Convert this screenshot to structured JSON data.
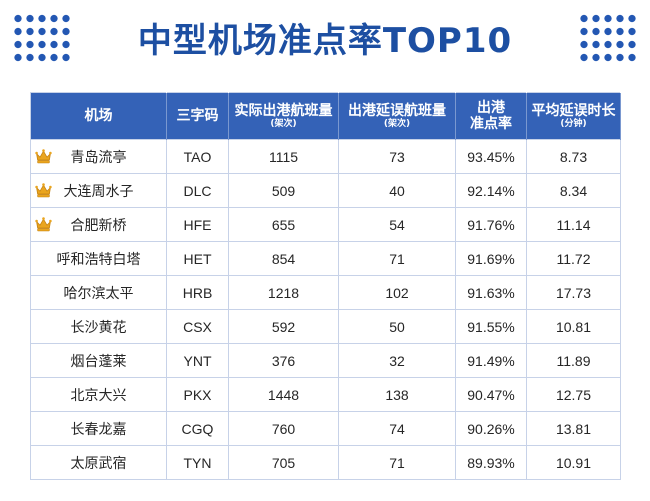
{
  "colors": {
    "title": "#1d4fa2",
    "header_bg": "#3462b7",
    "header_text": "#ffffff",
    "border": "#c7d2e8",
    "cell_text": "#262626",
    "dots": "#2357b3",
    "crown": "#eaa51e"
  },
  "icons": {
    "decoration": "dot-grid-icon",
    "top_rank": "crown-icon"
  },
  "chart_data": {
    "type": "table",
    "title": "中型机场准点率TOP10",
    "columns": [
      {
        "lines": [
          "机场"
        ]
      },
      {
        "lines": [
          "三字码"
        ]
      },
      {
        "lines": [
          "实际出港航班量"
        ],
        "unit": "(架次)"
      },
      {
        "lines": [
          "出港延误航班量"
        ],
        "unit": "(架次)"
      },
      {
        "lines": [
          "出港",
          "准点率"
        ]
      },
      {
        "lines": [
          "平均延误时长"
        ],
        "unit": "(分钟)"
      }
    ],
    "rows": [
      {
        "airport": "青岛流亭",
        "code": "TAO",
        "departures": 1115,
        "delayed": 73,
        "on_time_rate": "93.45%",
        "avg_delay_min": 8.73,
        "icon": "crown-icon"
      },
      {
        "airport": "大连周水子",
        "code": "DLC",
        "departures": 509,
        "delayed": 40,
        "on_time_rate": "92.14%",
        "avg_delay_min": 8.34,
        "icon": "crown-icon"
      },
      {
        "airport": "合肥新桥",
        "code": "HFE",
        "departures": 655,
        "delayed": 54,
        "on_time_rate": "91.76%",
        "avg_delay_min": 11.14,
        "icon": "crown-icon"
      },
      {
        "airport": "呼和浩特白塔",
        "code": "HET",
        "departures": 854,
        "delayed": 71,
        "on_time_rate": "91.69%",
        "avg_delay_min": 11.72
      },
      {
        "airport": "哈尔滨太平",
        "code": "HRB",
        "departures": 1218,
        "delayed": 102,
        "on_time_rate": "91.63%",
        "avg_delay_min": 17.73
      },
      {
        "airport": "长沙黄花",
        "code": "CSX",
        "departures": 592,
        "delayed": 50,
        "on_time_rate": "91.55%",
        "avg_delay_min": 10.81
      },
      {
        "airport": "烟台蓬莱",
        "code": "YNT",
        "departures": 376,
        "delayed": 32,
        "on_time_rate": "91.49%",
        "avg_delay_min": 11.89
      },
      {
        "airport": "北京大兴",
        "code": "PKX",
        "departures": 1448,
        "delayed": 138,
        "on_time_rate": "90.47%",
        "avg_delay_min": 12.75
      },
      {
        "airport": "长春龙嘉",
        "code": "CGQ",
        "departures": 760,
        "delayed": 74,
        "on_time_rate": "90.26%",
        "avg_delay_min": 13.81
      },
      {
        "airport": "太原武宿",
        "code": "TYN",
        "departures": 705,
        "delayed": 71,
        "on_time_rate": "89.93%",
        "avg_delay_min": 10.91
      }
    ]
  }
}
